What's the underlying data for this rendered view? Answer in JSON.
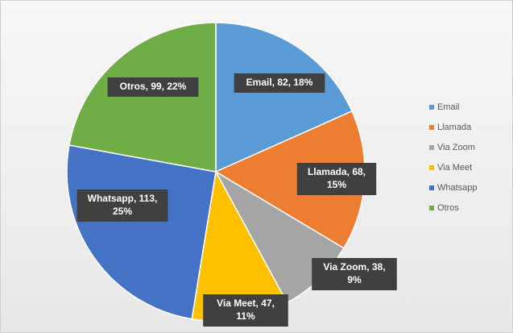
{
  "chart_data": {
    "type": "pie",
    "categories": [
      "Email",
      "Llamada",
      "Via Zoom",
      "Via Meet",
      "Whatsapp",
      "Otros"
    ],
    "values": [
      82,
      68,
      38,
      47,
      113,
      99
    ],
    "value_labels": [
      "Email, 82, 18%",
      "Llamada, 68, 15%",
      "Via Zoom, 38, 9%",
      "Via Meet, 47, 11%",
      "Whatsapp, 113, 25%",
      "Otros, 99, 22%"
    ],
    "colors": [
      "#5b9bd5",
      "#ed7d31",
      "#a5a5a5",
      "#ffc000",
      "#4472c4",
      "#70ad47"
    ],
    "legend": "right"
  }
}
